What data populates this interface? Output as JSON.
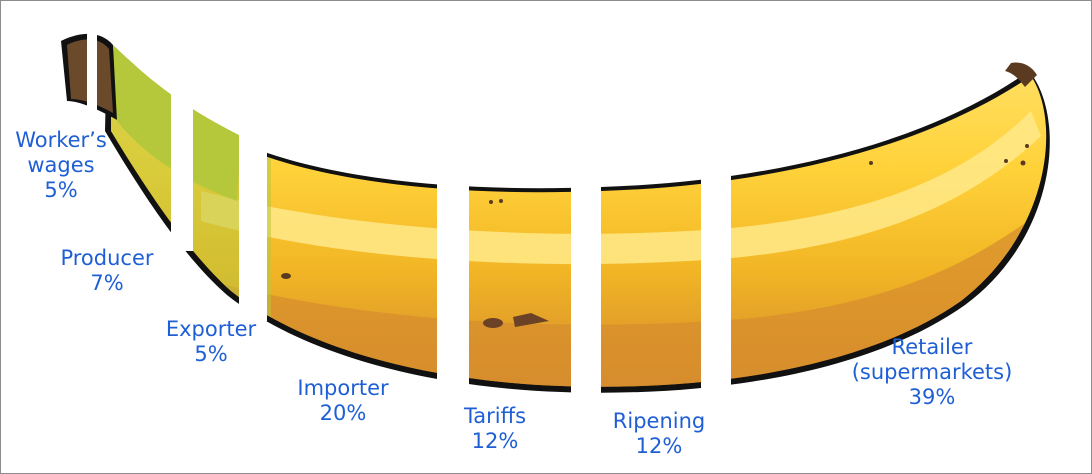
{
  "colors": {
    "label_text": "#1f5fd6",
    "peel_light": "#ffd84a",
    "peel_mid": "#f4b722",
    "peel_dark": "#d88d2d",
    "stem_green": "#b5c73a",
    "outline": "#111111",
    "stem_tip": "#6b4a2b"
  },
  "segments": [
    {
      "name": "Worker's\nwages",
      "line1": "Worker’s",
      "line2": "wages",
      "percent": "5%"
    },
    {
      "name": "Producer",
      "line1": "Producer",
      "line2": "",
      "percent": "7%"
    },
    {
      "name": "Exporter",
      "line1": "Exporter",
      "line2": "",
      "percent": "5%"
    },
    {
      "name": "Importer",
      "line1": "Importer",
      "line2": "",
      "percent": "20%"
    },
    {
      "name": "Tariffs",
      "line1": "Tariffs",
      "line2": "",
      "percent": "12%"
    },
    {
      "name": "Ripening",
      "line1": "Ripening",
      "line2": "",
      "percent": "12%"
    },
    {
      "name": "Retailer",
      "line1": "Retailer",
      "line2": "(supermarkets)",
      "percent": "39%"
    }
  ]
}
